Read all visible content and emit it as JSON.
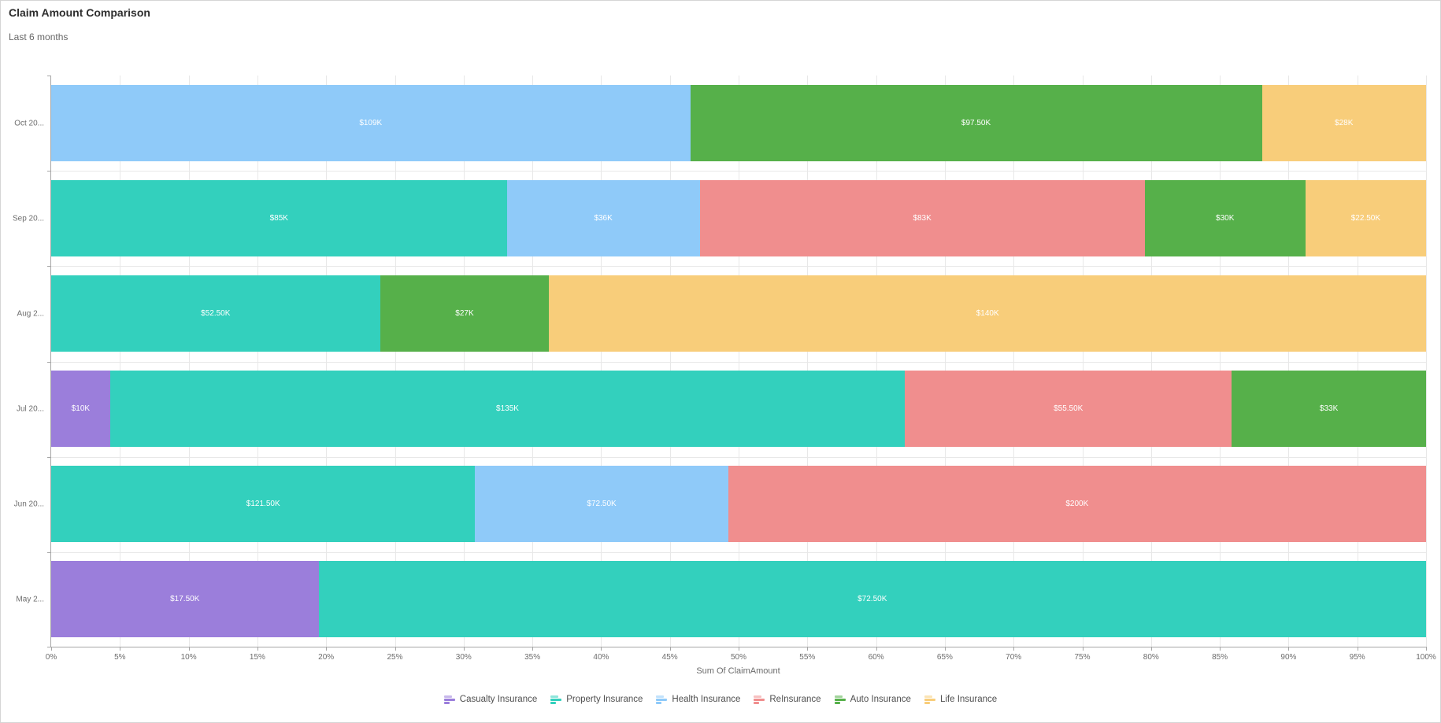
{
  "header": {
    "title": "Claim Amount Comparison",
    "subtitle": "Last 6 months"
  },
  "chart_data": {
    "type": "bar",
    "orientation": "horizontal",
    "stack_mode": "100%",
    "title": "Claim Amount Comparison",
    "subtitle": "Last 6 months",
    "xlabel": "Sum Of ClaimAmount",
    "xlim": [
      0,
      100
    ],
    "grid": true,
    "legend_position": "bottom",
    "x_ticks": [
      "0%",
      "5%",
      "10%",
      "15%",
      "20%",
      "25%",
      "30%",
      "35%",
      "40%",
      "45%",
      "50%",
      "55%",
      "60%",
      "65%",
      "70%",
      "75%",
      "80%",
      "85%",
      "90%",
      "95%",
      "100%"
    ],
    "categories": [
      "Oct 20...",
      "Sep 20...",
      "Aug 2...",
      "Jul 20...",
      "Jun 20...",
      "May 2..."
    ],
    "series": [
      {
        "name": "Casualty Insurance",
        "color": "#9b7edb",
        "values": [
          0,
          0,
          0,
          10000,
          0,
          17500
        ]
      },
      {
        "name": "Property Insurance",
        "color": "#33d0bd",
        "values": [
          0,
          85000,
          52500,
          135000,
          121500,
          72500
        ]
      },
      {
        "name": "Health Insurance",
        "color": "#8fcaf9",
        "values": [
          109000,
          36000,
          0,
          0,
          72500,
          0
        ]
      },
      {
        "name": "ReInsurance",
        "color": "#f08e8e",
        "values": [
          0,
          83000,
          0,
          55500,
          200000,
          0
        ]
      },
      {
        "name": "Auto Insurance",
        "color": "#56b04a",
        "values": [
          97500,
          30000,
          27000,
          33000,
          0,
          0
        ]
      },
      {
        "name": "Life Insurance",
        "color": "#f8cd7a",
        "values": [
          28000,
          22500,
          140000,
          0,
          0,
          0
        ]
      }
    ],
    "segment_labels": [
      [
        "$109K",
        "$97.50K",
        "$28K"
      ],
      [
        "$85K",
        "$36K",
        "$83K",
        "$30K",
        "$22.50K"
      ],
      [
        "$52.50K",
        "$27K",
        "$140K"
      ],
      [
        "$10K",
        "$135K",
        "$55.50K",
        "$33K"
      ],
      [
        "$121.50K",
        "$72.50K",
        "$200K"
      ],
      [
        "$17.50K",
        "$72.50K"
      ]
    ]
  }
}
